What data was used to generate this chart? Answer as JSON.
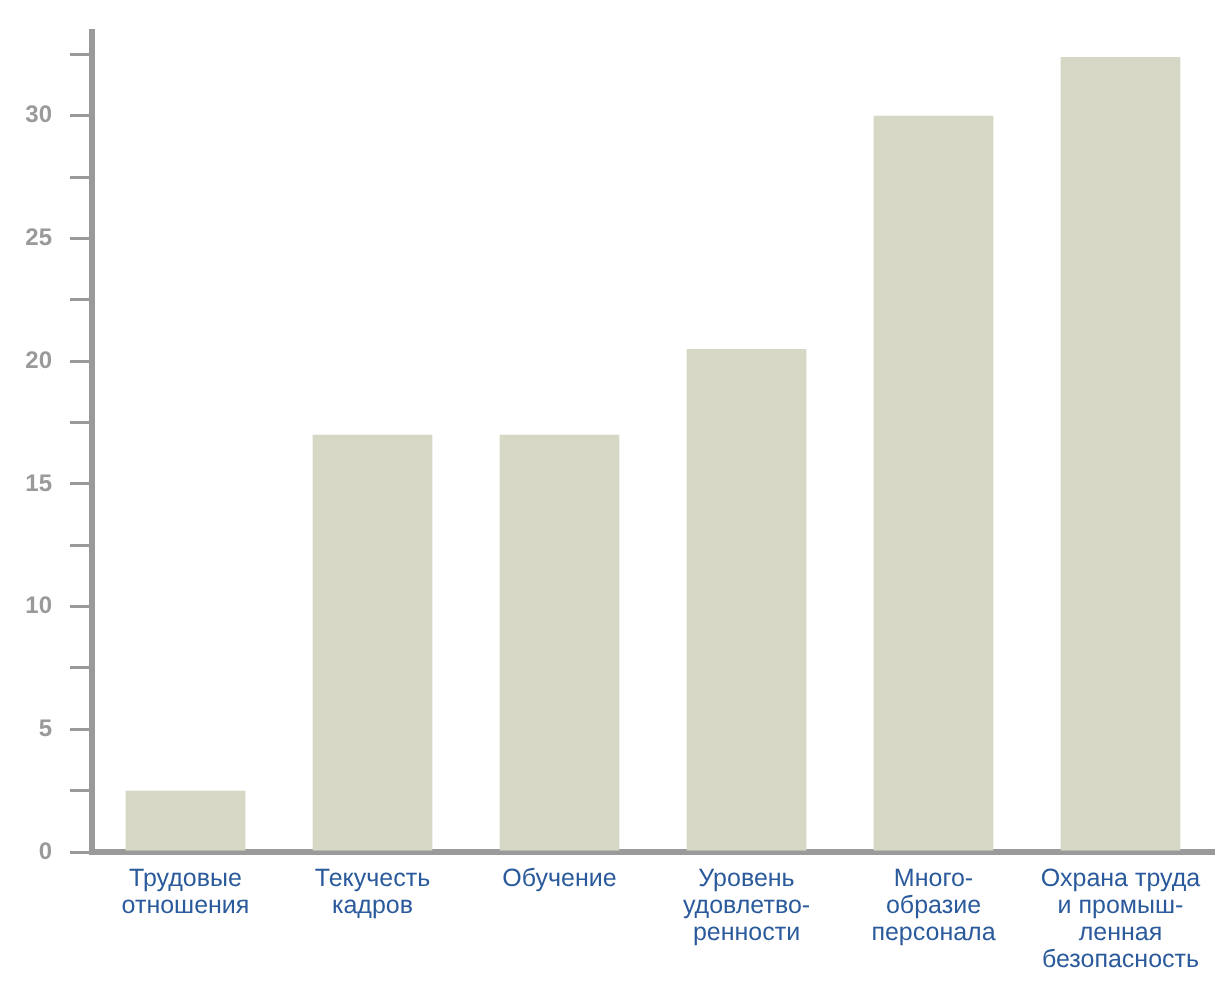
{
  "chart_data": {
    "type": "bar",
    "categories": [
      "Трудовые\nотношения",
      "Текучесть\nкадров",
      "Обучение",
      "Уровень\nудовлетво-\nренности",
      "Много-\nобразие\nперсонала",
      "Охрана труда\nи промыш-\nленная\nбезопасность"
    ],
    "values": [
      2.5,
      17,
      17,
      20.5,
      30,
      32.4
    ],
    "color": "#d6d7c4",
    "ylim": [
      0,
      33.4
    ],
    "yticks": [
      0,
      {
        "value": 2.5,
        "label": null
      },
      5,
      {
        "value": 7.5,
        "label": null
      },
      10,
      {
        "value": 12.5,
        "label": null
      },
      15,
      {
        "value": 17.5,
        "label": null
      },
      20,
      {
        "value": 22.5,
        "label": null
      },
      25,
      {
        "value": 27.5,
        "label": null
      },
      30,
      {
        "value": 32.5,
        "label": null
      }
    ]
  }
}
